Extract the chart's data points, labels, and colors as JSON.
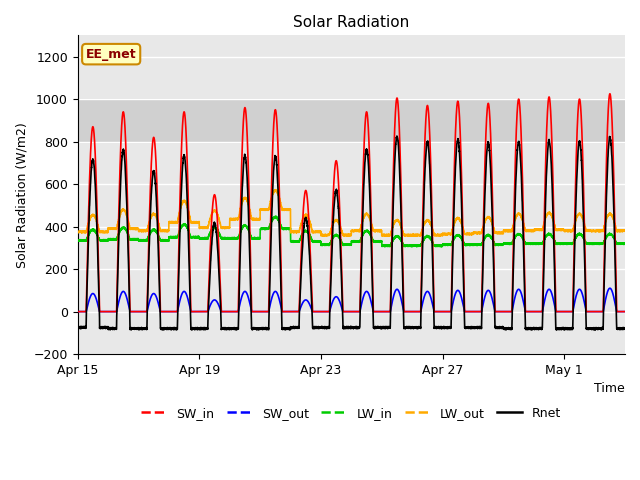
{
  "title": "Solar Radiation",
  "xlabel": "Time",
  "ylabel": "Solar Radiation (W/m2)",
  "ylim": [
    -200,
    1300
  ],
  "yticks": [
    -200,
    0,
    200,
    400,
    600,
    800,
    1000,
    1200
  ],
  "x_tick_labels": [
    "Apr 15",
    "Apr 19",
    "Apr 23",
    "Apr 27",
    "May 1"
  ],
  "annotation": "EE_met",
  "series": {
    "SW_in": {
      "color": "#ff0000",
      "lw": 1.2
    },
    "SW_out": {
      "color": "#0000ff",
      "lw": 1.2
    },
    "LW_in": {
      "color": "#00cc00",
      "lw": 1.2
    },
    "LW_out": {
      "color": "#ffaa00",
      "lw": 1.2
    },
    "Rnet": {
      "color": "#000000",
      "lw": 1.2
    }
  },
  "legend_labels": [
    "SW_in",
    "SW_out",
    "LW_in",
    "LW_out",
    "Rnet"
  ],
  "legend_colors": [
    "#ff0000",
    "#0000ff",
    "#00cc00",
    "#ffaa00",
    "#000000"
  ],
  "n_days": 18,
  "pts_per_day": 288,
  "sw_in_peaks": [
    870,
    940,
    820,
    940,
    550,
    960,
    950,
    570,
    710,
    940,
    1005,
    970,
    990,
    980,
    1000,
    1010,
    1000,
    1025
  ],
  "sw_out_peaks": [
    85,
    95,
    85,
    95,
    55,
    95,
    95,
    55,
    70,
    95,
    105,
    95,
    100,
    100,
    105,
    105,
    105,
    110
  ],
  "lw_in_base": [
    335,
    340,
    335,
    350,
    345,
    345,
    390,
    330,
    315,
    330,
    310,
    310,
    315,
    315,
    320,
    320,
    320,
    320
  ],
  "lw_in_peak": [
    50,
    55,
    50,
    60,
    50,
    60,
    55,
    50,
    45,
    50,
    45,
    45,
    45,
    45,
    45,
    45,
    45,
    45
  ],
  "lw_out_base": [
    375,
    390,
    380,
    420,
    395,
    435,
    480,
    375,
    360,
    380,
    360,
    360,
    365,
    370,
    380,
    385,
    380,
    380
  ],
  "lw_out_peak": [
    80,
    90,
    80,
    100,
    80,
    100,
    90,
    80,
    70,
    80,
    70,
    70,
    75,
    75,
    80,
    80,
    80,
    80
  ],
  "rnet_night": [
    -75,
    -80,
    -80,
    -80,
    -80,
    -80,
    -80,
    -75,
    -75,
    -75,
    -75,
    -75,
    -75,
    -75,
    -80,
    -80,
    -80,
    -80
  ],
  "day_start": 0.28,
  "day_end": 0.72,
  "band_low": 800,
  "band_high": 1000,
  "band_color": "#d0d0d0",
  "bg_color": "#e8e8e8",
  "grid_color": "#ffffff",
  "figsize": [
    6.4,
    4.8
  ],
  "dpi": 100
}
